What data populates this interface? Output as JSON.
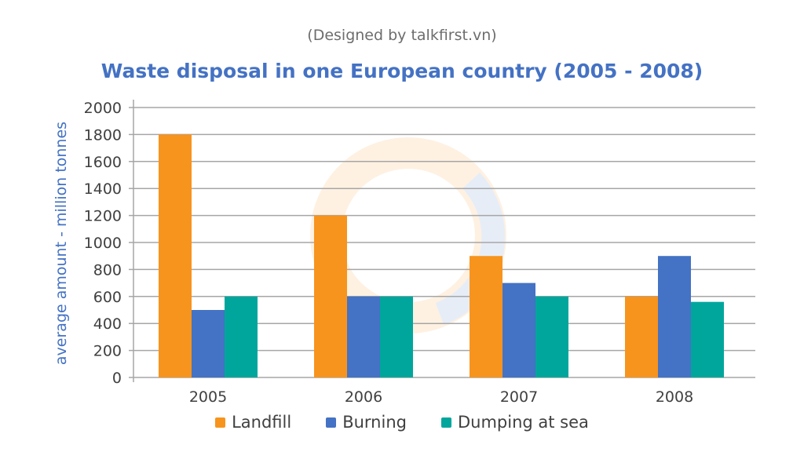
{
  "credit": "(Designed by talkfirst.vn)",
  "chart_data": {
    "type": "bar",
    "title": "Waste disposal in one European country (2005 - 2008)",
    "xlabel": "",
    "ylabel": "average amount - million tonnes",
    "ylim": [
      0,
      2000
    ],
    "yticks": [
      0,
      200,
      400,
      600,
      800,
      1000,
      1200,
      1400,
      1600,
      1800,
      2000
    ],
    "grid": true,
    "legend_position": "bottom",
    "categories": [
      "2005",
      "2006",
      "2007",
      "2008"
    ],
    "series": [
      {
        "name": "Landfill",
        "color": "#f7941d",
        "values": [
          1800,
          1200,
          900,
          600
        ]
      },
      {
        "name": "Burning",
        "color": "#4472c4",
        "values": [
          500,
          600,
          700,
          900
        ]
      },
      {
        "name": "Dumping at sea",
        "color": "#00a69c",
        "values": [
          600,
          600,
          600,
          560
        ]
      }
    ]
  }
}
